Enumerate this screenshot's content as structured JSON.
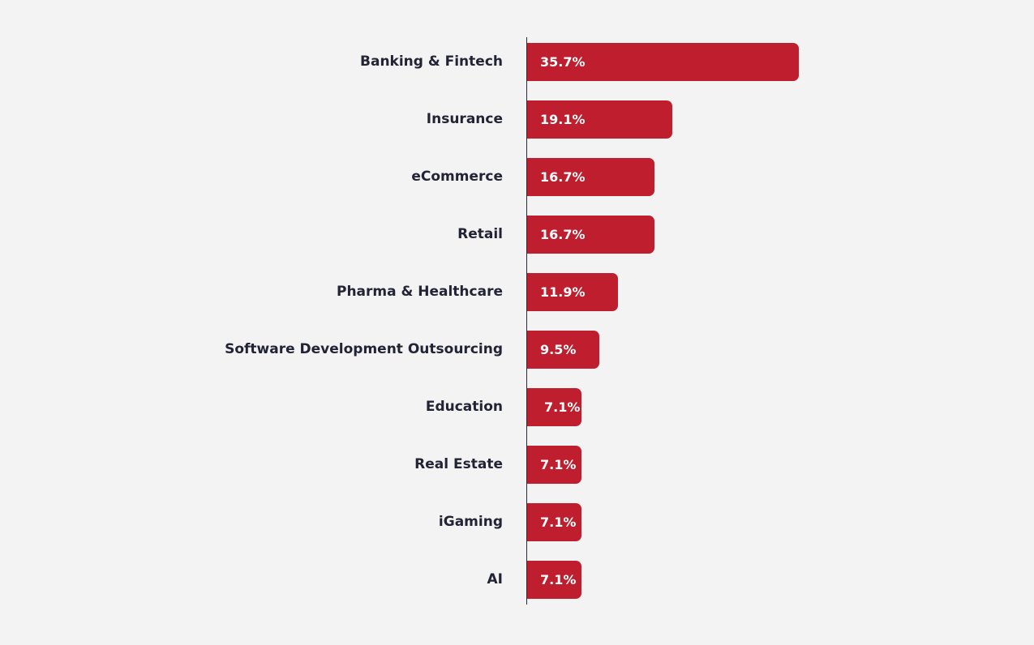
{
  "chart_data": {
    "type": "bar",
    "orientation": "horizontal",
    "categories": [
      "Banking & Fintech",
      "Insurance",
      "eCommerce",
      "Retail",
      "Pharma & Healthcare",
      "Software Development Outsourcing",
      "Education",
      "Real Estate",
      "iGaming",
      "AI"
    ],
    "values": [
      35.7,
      19.1,
      16.7,
      16.7,
      11.9,
      9.5,
      7.1,
      7.1,
      7.1,
      7.1
    ],
    "value_labels": [
      "35.7%",
      "19.1%",
      "16.7%",
      "16.7%",
      "11.9%",
      "9.5%",
      "7.1%",
      "7.1%",
      "7.1%",
      "7.1%"
    ],
    "title": "",
    "xlabel": "",
    "ylabel": "",
    "grid": false,
    "legend": "none",
    "bar_color": "#be1e2d",
    "label_color": "#232336",
    "background": "#f3f3f3"
  }
}
